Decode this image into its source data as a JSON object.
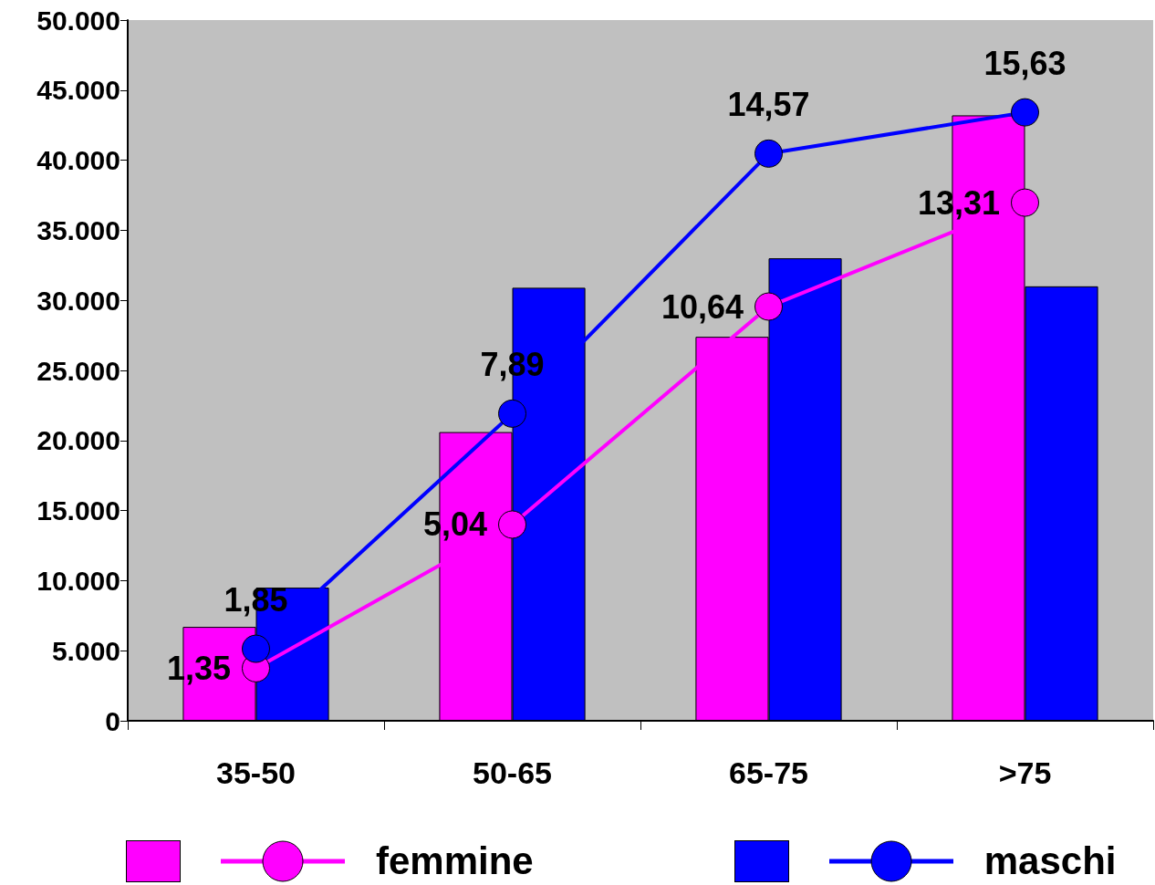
{
  "chart_data": {
    "type": "bar",
    "categories": [
      "35-50",
      "50-65",
      "65-75",
      ">75"
    ],
    "series": [
      {
        "color": "#ff00ff",
        "values": [
          6700,
          20600,
          27400,
          43200
        ]
      },
      {
        "color": "#0000ff",
        "values": [
          9500,
          30900,
          33000,
          31000
        ]
      },
      {
        "name": "femmine",
        "type": "line",
        "axis": "y2",
        "color": "#ff00ff",
        "values": [
          1.35,
          5.04,
          10.64,
          13.31
        ],
        "value_labels": [
          "1,35",
          "5,04",
          "10,64",
          "13,31"
        ]
      },
      {
        "name": "maschi",
        "type": "line",
        "axis": "y2",
        "color": "#0000ff",
        "values": [
          1.85,
          7.89,
          14.57,
          15.63
        ],
        "value_labels": [
          "1,85",
          "7,89",
          "14,57",
          "15,63"
        ]
      }
    ],
    "ylim": [
      0,
      50000
    ],
    "yticks": [
      0,
      {
        "value": 5000,
        "label": "5.000"
      },
      {
        "value": 10000,
        "label": "10.000"
      },
      {
        "value": 15000,
        "label": "15.000"
      },
      {
        "value": 20000,
        "label": "20.000"
      },
      {
        "value": 25000,
        "label": "25.000"
      },
      {
        "value": 30000,
        "label": "30.000"
      },
      {
        "value": 35000,
        "label": "35.000"
      },
      {
        "value": 40000,
        "label": "40.000"
      },
      {
        "value": 45000,
        "label": "45.000"
      },
      {
        "value": 50000,
        "label": "50.000"
      }
    ],
    "y2lim": [
      0,
      18
    ],
    "grid": false,
    "legend": "bottom",
    "marker": "circle",
    "line_style": "solid"
  }
}
